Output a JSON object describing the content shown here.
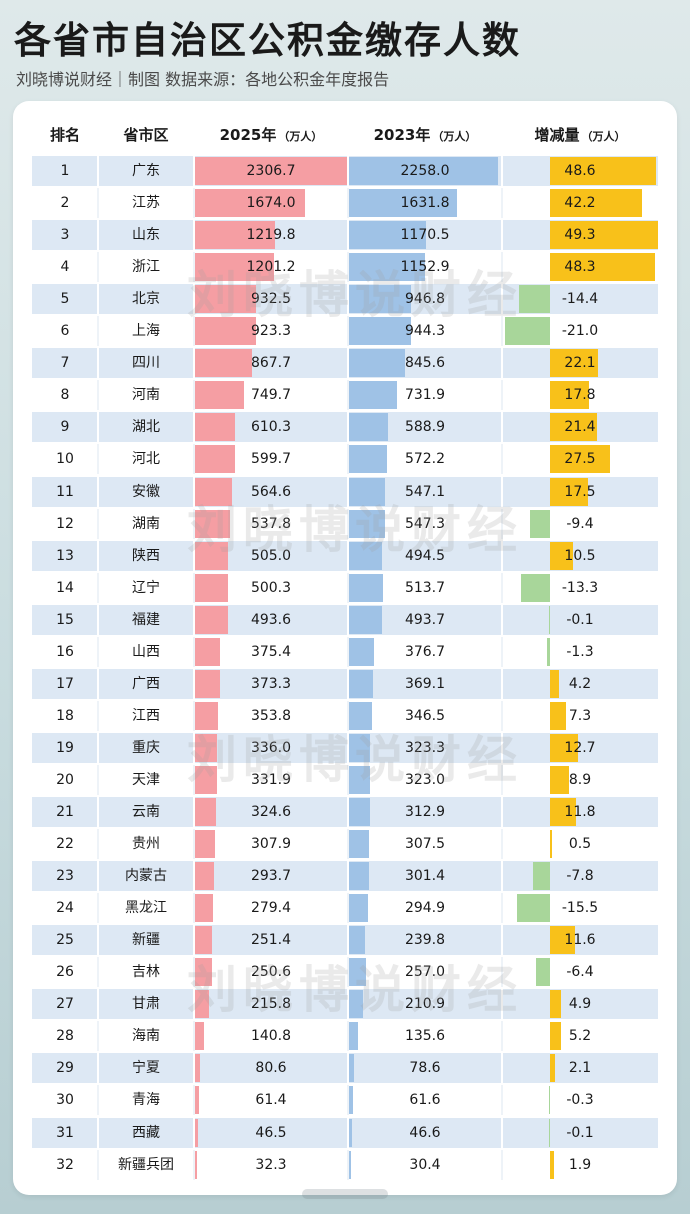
{
  "page": {
    "title": "各省市自治区公积金缴存人数",
    "subtitle": "刘晓博说财经｜制图  数据来源：各地公积金年度报告",
    "watermark": "刘晓博说财经"
  },
  "colors": {
    "bar_2025": "#f59ea3",
    "bar_2023": "#9fc2e6",
    "bar_increase": "#f8c11a",
    "bar_decrease": "#a8d69a",
    "row_alt": "#dde8f4"
  },
  "chart_data": {
    "type": "table",
    "columns": {
      "rank": "排名",
      "province": "省市区",
      "y2025": "2025年",
      "y2023": "2023年",
      "change": "增减量",
      "unit": "（万人）"
    },
    "rows": [
      {
        "rank": "1",
        "province": "广东",
        "y2025": 2306.7,
        "y2023": 2258.0,
        "change": 48.6
      },
      {
        "rank": "2",
        "province": "江苏",
        "y2025": 1674.0,
        "y2023": 1631.8,
        "change": 42.2
      },
      {
        "rank": "3",
        "province": "山东",
        "y2025": 1219.8,
        "y2023": 1170.5,
        "change": 49.3
      },
      {
        "rank": "4",
        "province": "浙江",
        "y2025": 1201.2,
        "y2023": 1152.9,
        "change": 48.3
      },
      {
        "rank": "5",
        "province": "北京",
        "y2025": 932.5,
        "y2023": 946.8,
        "change": -14.4
      },
      {
        "rank": "6",
        "province": "上海",
        "y2025": 923.3,
        "y2023": 944.3,
        "change": -21.0
      },
      {
        "rank": "7",
        "province": "四川",
        "y2025": 867.7,
        "y2023": 845.6,
        "change": 22.1
      },
      {
        "rank": "8",
        "province": "河南",
        "y2025": 749.7,
        "y2023": 731.9,
        "change": 17.8
      },
      {
        "rank": "9",
        "province": "湖北",
        "y2025": 610.3,
        "y2023": 588.9,
        "change": 21.4
      },
      {
        "rank": "10",
        "province": "河北",
        "y2025": 599.7,
        "y2023": 572.2,
        "change": 27.5
      },
      {
        "rank": "11",
        "province": "安徽",
        "y2025": 564.6,
        "y2023": 547.1,
        "change": 17.5
      },
      {
        "rank": "12",
        "province": "湖南",
        "y2025": 537.8,
        "y2023": 547.3,
        "change": -9.4
      },
      {
        "rank": "13",
        "province": "陕西",
        "y2025": 505.0,
        "y2023": 494.5,
        "change": 10.5
      },
      {
        "rank": "14",
        "province": "辽宁",
        "y2025": 500.3,
        "y2023": 513.7,
        "change": -13.3
      },
      {
        "rank": "15",
        "province": "福建",
        "y2025": 493.6,
        "y2023": 493.7,
        "change": -0.1
      },
      {
        "rank": "16",
        "province": "山西",
        "y2025": 375.4,
        "y2023": 376.7,
        "change": -1.3
      },
      {
        "rank": "17",
        "province": "广西",
        "y2025": 373.3,
        "y2023": 369.1,
        "change": 4.2
      },
      {
        "rank": "18",
        "province": "江西",
        "y2025": 353.8,
        "y2023": 346.5,
        "change": 7.3
      },
      {
        "rank": "19",
        "province": "重庆",
        "y2025": 336.0,
        "y2023": 323.3,
        "change": 12.7
      },
      {
        "rank": "20",
        "province": "天津",
        "y2025": 331.9,
        "y2023": 323.0,
        "change": 8.9
      },
      {
        "rank": "21",
        "province": "云南",
        "y2025": 324.6,
        "y2023": 312.9,
        "change": 11.8
      },
      {
        "rank": "22",
        "province": "贵州",
        "y2025": 307.9,
        "y2023": 307.5,
        "change": 0.5
      },
      {
        "rank": "23",
        "province": "内蒙古",
        "y2025": 293.7,
        "y2023": 301.4,
        "change": -7.8
      },
      {
        "rank": "24",
        "province": "黑龙江",
        "y2025": 279.4,
        "y2023": 294.9,
        "change": -15.5
      },
      {
        "rank": "25",
        "province": "新疆",
        "y2025": 251.4,
        "y2023": 239.8,
        "change": 11.6
      },
      {
        "rank": "26",
        "province": "吉林",
        "y2025": 250.6,
        "y2023": 257.0,
        "change": -6.4
      },
      {
        "rank": "27",
        "province": "甘肃",
        "y2025": 215.8,
        "y2023": 210.9,
        "change": 4.9
      },
      {
        "rank": "28",
        "province": "海南",
        "y2025": 140.8,
        "y2023": 135.6,
        "change": 5.2
      },
      {
        "rank": "29",
        "province": "宁夏",
        "y2025": 80.6,
        "y2023": 78.6,
        "change": 2.1
      },
      {
        "rank": "30",
        "province": "青海",
        "y2025": 61.4,
        "y2023": 61.6,
        "change": -0.3
      },
      {
        "rank": "31",
        "province": "西藏",
        "y2025": 46.5,
        "y2023": 46.6,
        "change": -0.1
      },
      {
        "rank": "32",
        "province": "新疆兵团",
        "y2025": 32.3,
        "y2023": 30.4,
        "change": 1.9
      }
    ]
  }
}
